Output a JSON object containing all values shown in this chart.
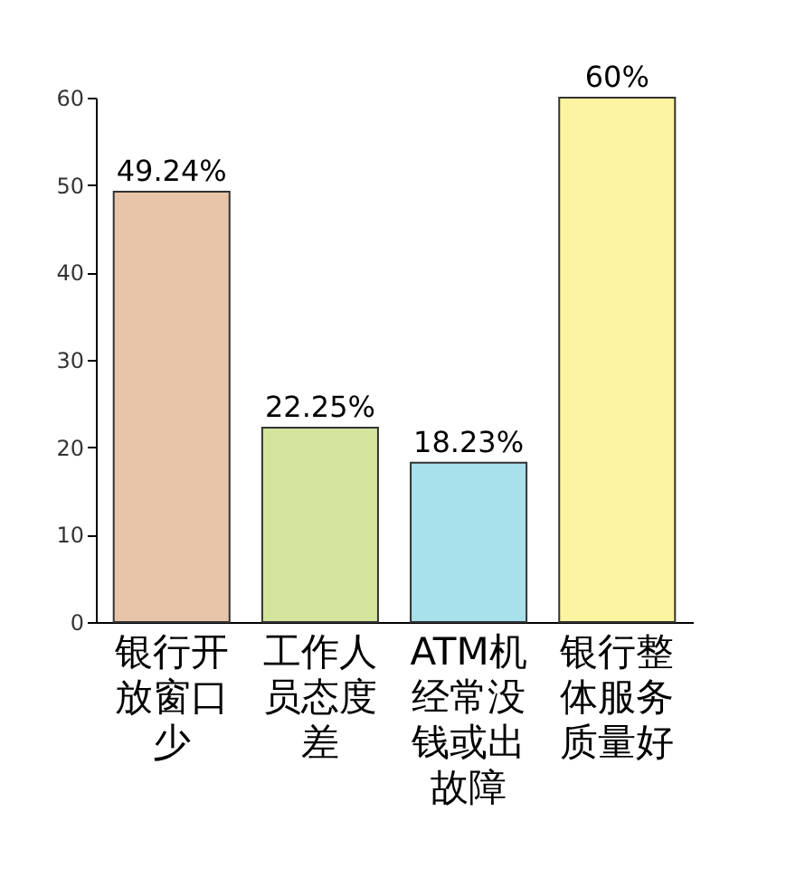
{
  "chart_data": {
    "type": "bar",
    "categories": [
      "银行开放窗口少",
      "工作人员态度差",
      "ATM机经常没钱或出故障",
      "银行整体服务质量好"
    ],
    "values": [
      49.24,
      22.25,
      18.23,
      60
    ],
    "value_labels": [
      "49.24%",
      "22.25%",
      "18.23%",
      "60%"
    ],
    "colors": [
      "#e8c4a8",
      "#d4e49c",
      "#a8e0ec",
      "#fcf4a0"
    ],
    "ylim": [
      0,
      60
    ],
    "yticks": [
      0,
      10,
      20,
      30,
      40,
      50,
      60
    ],
    "grid": false
  }
}
